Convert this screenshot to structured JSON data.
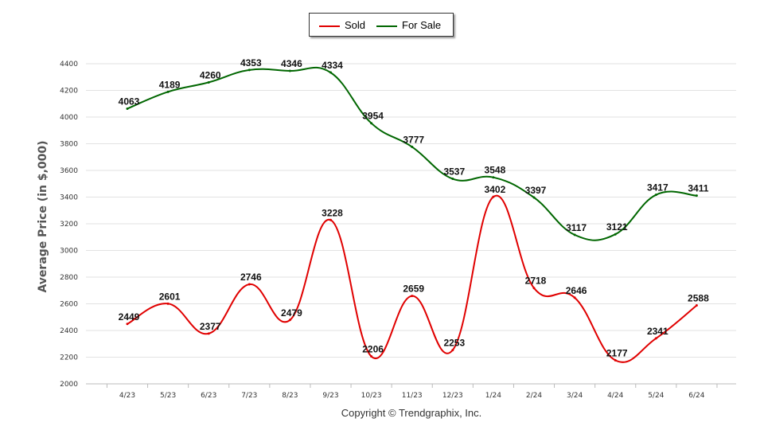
{
  "legend": {
    "sold": "Sold",
    "for_sale": "For Sale"
  },
  "copyright": "Copyright © Trendgraphix, Inc.",
  "colors": {
    "sold": "#e00000",
    "for_sale": "#006600",
    "grid": "#e2e2e2",
    "axis": "#bbbbbb"
  },
  "chart_data": {
    "type": "line",
    "title": "",
    "xlabel": "",
    "ylabel": "Average Price (in $,000)",
    "categories": [
      "4/23",
      "5/23",
      "6/23",
      "7/23",
      "8/23",
      "9/23",
      "10/23",
      "11/23",
      "12/23",
      "1/24",
      "2/24",
      "3/24",
      "4/24",
      "5/24",
      "6/24"
    ],
    "ylim": [
      2000,
      4400
    ],
    "yticks": [
      2000,
      2200,
      2400,
      2600,
      2800,
      3000,
      3200,
      3400,
      3600,
      3800,
      4000,
      4200,
      4400
    ],
    "grid": true,
    "legend_position": "top-center",
    "series": [
      {
        "name": "Sold",
        "values": [
          2449,
          2601,
          2377,
          2746,
          2479,
          3228,
          2206,
          2659,
          2253,
          3402,
          2718,
          2646,
          2177,
          2341,
          2588
        ]
      },
      {
        "name": "For Sale",
        "values": [
          4063,
          4189,
          4260,
          4353,
          4346,
          4334,
          3954,
          3777,
          3537,
          3548,
          3397,
          3117,
          3121,
          3417,
          3411
        ]
      }
    ]
  }
}
